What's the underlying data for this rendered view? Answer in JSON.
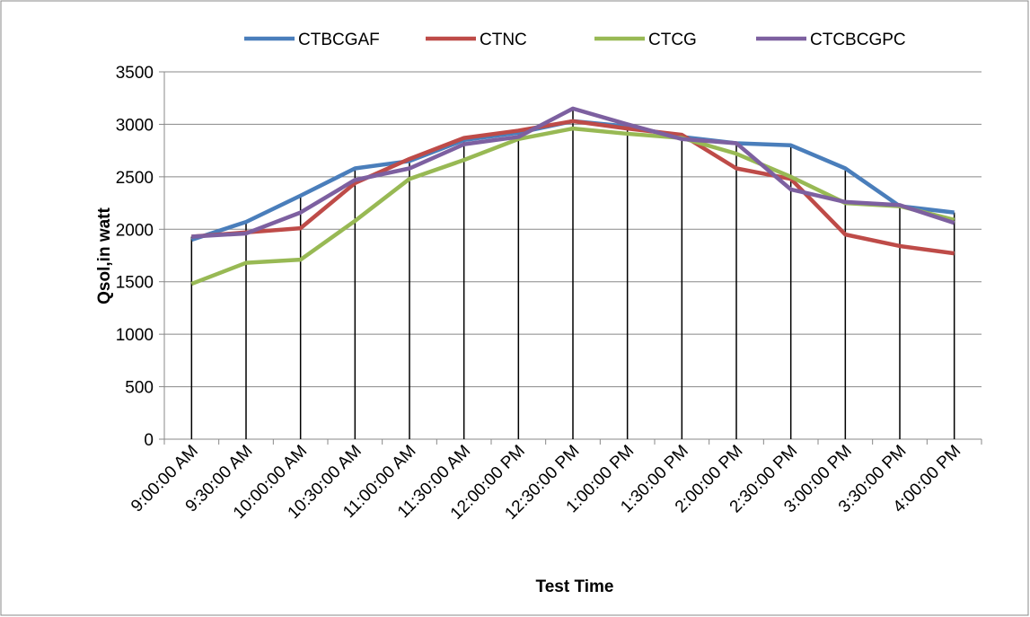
{
  "chart_data": {
    "type": "line",
    "x_label": "Test Time",
    "y_label": "Qsol,in watt",
    "categories": [
      "9:00:00 AM",
      "9:30:00 AM",
      "10:00:00 AM",
      "10:30:00 AM",
      "11:00:00 AM",
      "11:30:00 AM",
      "12:00:00 PM",
      "12:30:00 PM",
      "1:00:00 PM",
      "1:30:00 PM",
      "2:00:00 PM",
      "2:30:00 PM",
      "3:00:00 PM",
      "3:30:00 PM",
      "4:00:00 PM"
    ],
    "series": [
      {
        "name": "CTBCGAF",
        "color": "#4a7ebb",
        "values": [
          1900,
          2070,
          2320,
          2580,
          2650,
          2850,
          2920,
          3030,
          2980,
          2880,
          2820,
          2800,
          2580,
          2220,
          2160
        ]
      },
      {
        "name": "CTNC",
        "color": "#be4b48",
        "values": [
          1930,
          1970,
          2010,
          2440,
          2670,
          2870,
          2940,
          3030,
          2960,
          2900,
          2580,
          2480,
          1950,
          1840,
          1770
        ]
      },
      {
        "name": "CTCG",
        "color": "#98b954",
        "values": [
          1480,
          1680,
          1710,
          2080,
          2480,
          2660,
          2860,
          2960,
          2910,
          2870,
          2720,
          2500,
          2250,
          2220,
          2090
        ]
      },
      {
        "name": "CTCBCGPC",
        "color": "#7d60a0",
        "values": [
          1930,
          1960,
          2160,
          2470,
          2580,
          2810,
          2880,
          3150,
          3000,
          2860,
          2820,
          2380,
          2260,
          2230,
          2060
        ]
      }
    ],
    "ylim": [
      0,
      3500
    ],
    "yticks": [
      0,
      500,
      1000,
      1500,
      2000,
      2500,
      3000,
      3500
    ],
    "grid": true,
    "drop_lines": true,
    "legend": "top"
  }
}
